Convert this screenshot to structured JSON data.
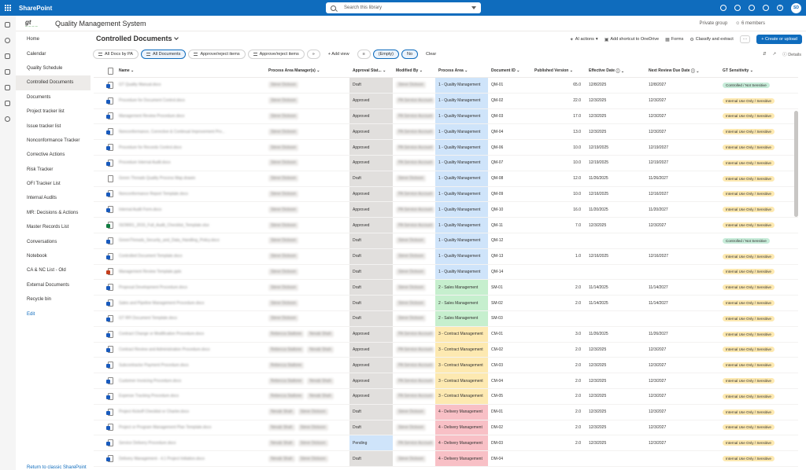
{
  "suite": {
    "app_name": "SharePoint",
    "search_placeholder": "Search this library",
    "avatar_initials": "SD"
  },
  "site": {
    "logo": "gt",
    "title": "Quality Management System",
    "privacy": "Private group",
    "members": "6 members"
  },
  "nav": {
    "items": [
      {
        "label": "Home",
        "active": false
      },
      {
        "label": "Calendar",
        "active": false
      },
      {
        "label": "Quality Schedule",
        "active": false
      },
      {
        "label": "Controlled Documents",
        "active": true
      },
      {
        "label": "Documents",
        "active": false
      },
      {
        "label": "Project tracker list",
        "active": false
      },
      {
        "label": "Issue tracker list",
        "active": false
      },
      {
        "label": "Nonconformance Tracker",
        "active": false
      },
      {
        "label": "Corrective Actions",
        "active": false
      },
      {
        "label": "Risk Tracker",
        "active": false
      },
      {
        "label": "OFI Tracker List",
        "active": false
      },
      {
        "label": "Internal Audits",
        "active": false
      },
      {
        "label": "MR: Decisions & Actions",
        "active": false
      },
      {
        "label": "Master Records List",
        "active": false
      },
      {
        "label": "Conversations",
        "active": false
      },
      {
        "label": "Notebook",
        "active": false
      },
      {
        "label": "CA & NC List - Old",
        "active": false
      },
      {
        "label": "External Documents",
        "active": false
      },
      {
        "label": "Recycle bin",
        "active": false
      }
    ],
    "edit": "Edit",
    "bottom_link": "Return to classic SharePoint"
  },
  "library": {
    "title": "Controlled Documents"
  },
  "commands": {
    "ai_actions": "AI actions",
    "shortcut": "Add shortcut to OneDrive",
    "forms": "Forms",
    "classify": "Classify and extract",
    "more": "···",
    "create": "+ Create or upload"
  },
  "views": {
    "all_docs_by_pa": "All Docs by PA",
    "all_documents": "All Documents",
    "approve1": "Approve/reject items",
    "approve2": "Approve/reject items",
    "more": "»",
    "add_view": "+ Add view",
    "empty_chip": "(Empty)",
    "no_chip": "No",
    "clear": "Clear",
    "details": "Details"
  },
  "columns": {
    "name": "Name",
    "managers": "Process Area Manager(s)",
    "approval": "Approval Stat...",
    "modified_by": "Modified By",
    "area": "Process Area",
    "doc_id": "Document ID",
    "published": "Published Version",
    "effective": "Effective Date",
    "next_review": "Next Review Due Date",
    "sensitivity": "GT Sensitivity"
  },
  "colors": {
    "quality": "#cfe4fa",
    "sales": "#c6efce",
    "contract": "#fde9b1",
    "delivery": "#f8c0c6",
    "sens_controlled": "#c7ecd9",
    "sens_internal": "#fde9b1"
  },
  "rows": [
    {
      "name": "GT Quality Manual.docx",
      "icon": "word",
      "mgr": "Steve Dickson",
      "mgr2": "",
      "approval": "Draft",
      "mod": "Steve Dickson",
      "area": "1 - Quality Management",
      "areaKey": "quality",
      "doc": "QM-01",
      "pub": "65.0",
      "eff": "12/8/2025",
      "next": "12/8/2027",
      "sens": "Controlled / Not Sensitive",
      "sensKey": "controlled"
    },
    {
      "name": "Procedure for Document Control.docx",
      "icon": "word",
      "mgr": "Steve Dickson",
      "mgr2": "",
      "approval": "Approved",
      "mod": "PA Service Account",
      "area": "1 - Quality Management",
      "areaKey": "quality",
      "doc": "QM-02",
      "pub": "22.0",
      "eff": "12/3/2025",
      "next": "12/3/2027",
      "sens": "Internal Use Only / Sensitive",
      "sensKey": "internal"
    },
    {
      "name": "Management Review Procedure.docx",
      "icon": "word",
      "mgr": "Steve Dickson",
      "mgr2": "",
      "approval": "Approved",
      "mod": "PA Service Account",
      "area": "1 - Quality Management",
      "areaKey": "quality",
      "doc": "QM-03",
      "pub": "17.0",
      "eff": "12/3/2025",
      "next": "12/3/2027",
      "sens": "Internal Use Only / Sensitive",
      "sensKey": "internal"
    },
    {
      "name": "Nonconformance, Corrective & Continual Improvement Pro...",
      "icon": "word",
      "mgr": "Steve Dickson",
      "mgr2": "",
      "approval": "Approved",
      "mod": "PA Service Account",
      "area": "1 - Quality Management",
      "areaKey": "quality",
      "doc": "QM-04",
      "pub": "13.0",
      "eff": "12/3/2025",
      "next": "12/3/2027",
      "sens": "Internal Use Only / Sensitive",
      "sensKey": "internal"
    },
    {
      "name": "Procedure for Records Control.docx",
      "icon": "word",
      "mgr": "Steve Dickson",
      "mgr2": "",
      "approval": "Approved",
      "mod": "PA Service Account",
      "area": "1 - Quality Management",
      "areaKey": "quality",
      "doc": "QM-06",
      "pub": "10.0",
      "eff": "12/19/2025",
      "next": "12/19/2027",
      "sens": "Internal Use Only / Sensitive",
      "sensKey": "internal"
    },
    {
      "name": "Procedure Internal Audit.docx",
      "icon": "word",
      "mgr": "Steve Dickson",
      "mgr2": "",
      "approval": "Approved",
      "mod": "PA Service Account",
      "area": "1 - Quality Management",
      "areaKey": "quality",
      "doc": "QM-07",
      "pub": "10.0",
      "eff": "12/19/2025",
      "next": "12/19/2027",
      "sens": "Internal Use Only / Sensitive",
      "sensKey": "internal"
    },
    {
      "name": "Green Threads Quality Process Map.drawio",
      "icon": "plain",
      "mgr": "Steve Dickson",
      "mgr2": "",
      "approval": "Draft",
      "mod": "Steve Dickson",
      "area": "1 - Quality Management",
      "areaKey": "quality",
      "doc": "QM-08",
      "pub": "12.0",
      "eff": "11/26/2025",
      "next": "11/26/2027",
      "sens": "Internal Use Only / Sensitive",
      "sensKey": "internal"
    },
    {
      "name": "Nonconformance Report Template.docx",
      "icon": "word",
      "mgr": "Steve Dickson",
      "mgr2": "",
      "approval": "Approved",
      "mod": "PA Service Account",
      "area": "1 - Quality Management",
      "areaKey": "quality",
      "doc": "QM-09",
      "pub": "10.0",
      "eff": "12/16/2025",
      "next": "12/16/2027",
      "sens": "Internal Use Only / Sensitive",
      "sensKey": "internal"
    },
    {
      "name": "Internal Audit Form.docx",
      "icon": "word",
      "mgr": "Steve Dickson",
      "mgr2": "",
      "approval": "Approved",
      "mod": "PA Service Account",
      "area": "1 - Quality Management",
      "areaKey": "quality",
      "doc": "QM-10",
      "pub": "16.0",
      "eff": "11/20/2025",
      "next": "11/20/2027",
      "sens": "Internal Use Only / Sensitive",
      "sensKey": "internal"
    },
    {
      "name": "ISO9001_2015_Full_Audit_Checklist_Template.xlsx",
      "icon": "excel",
      "mgr": "Steve Dickson",
      "mgr2": "",
      "approval": "Approved",
      "mod": "PA Service Account",
      "area": "1 - Quality Management",
      "areaKey": "quality",
      "doc": "QM-11",
      "pub": "7.0",
      "eff": "12/3/2025",
      "next": "12/3/2027",
      "sens": "Internal Use Only / Sensitive",
      "sensKey": "internal"
    },
    {
      "name": "GreenThreads_Security_and_Data_Handling_Policy.docx",
      "icon": "word",
      "mgr": "Steve Dickson",
      "mgr2": "",
      "approval": "Draft",
      "mod": "Steve Dickson",
      "area": "1 - Quality Management",
      "areaKey": "quality",
      "doc": "QM-12",
      "pub": "",
      "eff": "",
      "next": "",
      "sens": "Controlled / Not Sensitive",
      "sensKey": "controlled"
    },
    {
      "name": "Controlled Document Template.docx",
      "icon": "word",
      "mgr": "Steve Dickson",
      "mgr2": "",
      "approval": "Draft",
      "mod": "Steve Dickson",
      "area": "1 - Quality Management",
      "areaKey": "quality",
      "doc": "QM-13",
      "pub": "1.0",
      "eff": "12/16/2025",
      "next": "12/16/2027",
      "sens": "Internal Use Only / Sensitive",
      "sensKey": "internal"
    },
    {
      "name": "Management Review Template.pptx",
      "icon": "ppt",
      "mgr": "Steve Dickson",
      "mgr2": "",
      "approval": "Draft",
      "mod": "Steve Dickson",
      "area": "1 - Quality Management",
      "areaKey": "quality",
      "doc": "QM-14",
      "pub": "",
      "eff": "",
      "next": "",
      "sens": "Internal Use Only / Sensitive",
      "sensKey": "internal"
    },
    {
      "name": "Proposal Development Procedure.docx",
      "icon": "word",
      "mgr": "Steve Dickson",
      "mgr2": "",
      "approval": "Draft",
      "mod": "Steve Dickson",
      "area": "2 - Sales Management",
      "areaKey": "sales",
      "doc": "SM-01",
      "pub": "2.0",
      "eff": "11/14/2025",
      "next": "11/14/2027",
      "sens": "Internal Use Only / Sensitive",
      "sensKey": "internal"
    },
    {
      "name": "Sales and Pipeline Management Procedure.docx",
      "icon": "word",
      "mgr": "Steve Dickson",
      "mgr2": "",
      "approval": "Draft",
      "mod": "Steve Dickson",
      "area": "2 - Sales Management",
      "areaKey": "sales",
      "doc": "SM-02",
      "pub": "2.0",
      "eff": "11/14/2025",
      "next": "11/14/2027",
      "sens": "Internal Use Only / Sensitive",
      "sensKey": "internal"
    },
    {
      "name": "GT RFI Document Template.docx",
      "icon": "word",
      "mgr": "Steve Dickson",
      "mgr2": "",
      "approval": "Draft",
      "mod": "Steve Dickson",
      "area": "2 - Sales Management",
      "areaKey": "sales",
      "doc": "SM-03",
      "pub": "",
      "eff": "",
      "next": "",
      "sens": "Internal Use Only / Sensitive",
      "sensKey": "internal"
    },
    {
      "name": "Contract Change or Modification Procedure.docx",
      "icon": "word",
      "mgr": "Rebecca Stallone",
      "mgr2": "Nevab Shah",
      "approval": "Approved",
      "mod": "PA Service Account",
      "area": "3 - Contract Management",
      "areaKey": "contract",
      "doc": "CM-01",
      "pub": "3.0",
      "eff": "11/26/2025",
      "next": "11/26/2027",
      "sens": "Internal Use Only / Sensitive",
      "sensKey": "internal"
    },
    {
      "name": "Contract Review and Administration Procedure.docx",
      "icon": "word",
      "mgr": "Rebecca Stallone",
      "mgr2": "Nevab Shah",
      "approval": "Approved",
      "mod": "PA Service Account",
      "area": "3 - Contract Management",
      "areaKey": "contract",
      "doc": "CM-02",
      "pub": "2.0",
      "eff": "12/3/2025",
      "next": "12/3/2027",
      "sens": "Internal Use Only / Sensitive",
      "sensKey": "internal"
    },
    {
      "name": "Subcontractor Payment Procedure.docx",
      "icon": "word",
      "mgr": "Rebecca Stallone",
      "mgr2": "",
      "approval": "Approved",
      "mod": "PA Service Account",
      "area": "3 - Contract Management",
      "areaKey": "contract",
      "doc": "CM-03",
      "pub": "2.0",
      "eff": "12/3/2025",
      "next": "12/3/2027",
      "sens": "Internal Use Only / Sensitive",
      "sensKey": "internal"
    },
    {
      "name": "Customer Invoicing Procedure.docx",
      "icon": "word",
      "mgr": "Rebecca Stallone",
      "mgr2": "Nevab Shah",
      "approval": "Approved",
      "mod": "PA Service Account",
      "area": "3 - Contract Management",
      "areaKey": "contract",
      "doc": "CM-04",
      "pub": "2.0",
      "eff": "12/3/2025",
      "next": "12/3/2027",
      "sens": "Internal Use Only / Sensitive",
      "sensKey": "internal"
    },
    {
      "name": "Expense Tracking Procedure.docx",
      "icon": "word",
      "mgr": "Rebecca Stallone",
      "mgr2": "Nevab Shah",
      "approval": "Approved",
      "mod": "PA Service Account",
      "area": "3 - Contract Management",
      "areaKey": "contract",
      "doc": "CM-05",
      "pub": "2.0",
      "eff": "12/3/2025",
      "next": "12/3/2027",
      "sens": "Internal Use Only / Sensitive",
      "sensKey": "internal"
    },
    {
      "name": "Project Kickoff Checklist or Charter.docx",
      "icon": "word",
      "mgr": "Nevab Shah",
      "mgr2": "Steve Dickson",
      "approval": "Draft",
      "mod": "Steve Dickson",
      "area": "4 - Delivery Management",
      "areaKey": "delivery",
      "doc": "DM-01",
      "pub": "2.0",
      "eff": "12/3/2025",
      "next": "12/3/2027",
      "sens": "Internal Use Only / Sensitive",
      "sensKey": "internal"
    },
    {
      "name": "Project or Program Management Plan Template.docx",
      "icon": "word",
      "mgr": "Nevab Shah",
      "mgr2": "Steve Dickson",
      "approval": "Draft",
      "mod": "Steve Dickson",
      "area": "4 - Delivery Management",
      "areaKey": "delivery",
      "doc": "DM-02",
      "pub": "2.0",
      "eff": "12/3/2025",
      "next": "12/3/2027",
      "sens": "Internal Use Only / Sensitive",
      "sensKey": "internal"
    },
    {
      "name": "Service Delivery Procedure.docx",
      "icon": "word",
      "mgr": "Nevab Shah",
      "mgr2": "Steve Dickson",
      "approval": "Pending",
      "mod": "PA Service Account",
      "area": "4 - Delivery Management",
      "areaKey": "delivery",
      "doc": "DM-03",
      "pub": "2.0",
      "eff": "12/3/2025",
      "next": "12/3/2027",
      "sens": "Internal Use Only / Sensitive",
      "sensKey": "internal"
    },
    {
      "name": "Delivery Management - 4.1 Project Initiation.docx",
      "icon": "word",
      "mgr": "Nevab Shah",
      "mgr2": "Steve Dickson",
      "approval": "Draft",
      "mod": "Steve Dickson",
      "area": "4 - Delivery Management",
      "areaKey": "delivery",
      "doc": "DM-04",
      "pub": "",
      "eff": "",
      "next": "",
      "sens": "Internal Use Only / Sensitive",
      "sensKey": "internal"
    }
  ]
}
